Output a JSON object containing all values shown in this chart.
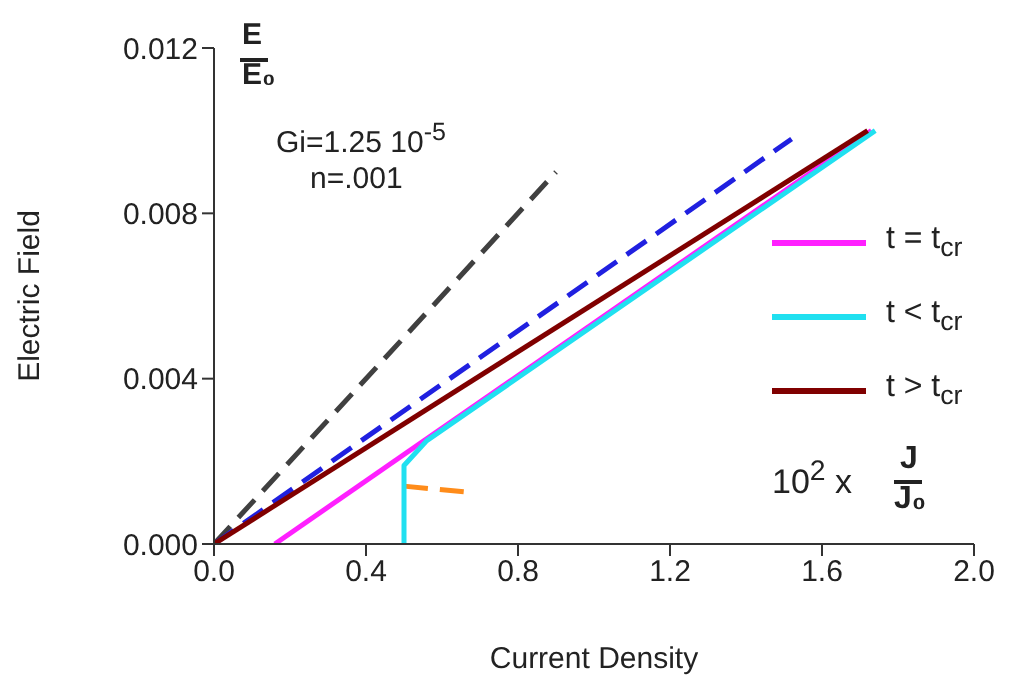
{
  "chart_data": {
    "type": "line",
    "xlabel": "Current Density",
    "ylabel": "Electric Field",
    "annotations": [
      "E",
      "E₀",
      "Gi=1.25 10$^{-5}$",
      "n=.001",
      "10$^{2}$ x",
      "J",
      "J₀"
    ],
    "xlim": [
      0,
      2.0
    ],
    "xticks": [
      {
        "value": 0,
        "label": "0.0"
      },
      0.4,
      0.8,
      1.2,
      {
        "value": 2.0,
        "label": "2.0"
      },
      1.6
    ],
    "ylim": [
      0,
      0.012
    ],
    "yticks": [
      {
        "value": 0,
        "label": "0.000"
      },
      0.004,
      0.008,
      0.012
    ],
    "grid": false,
    "legend": "right",
    "marker": "none",
    "series": [
      {
        "color": "#404040",
        "line_style": "dashed",
        "x": [
          0,
          0.9
        ],
        "values": [
          0,
          0.009
        ]
      },
      {
        "color": "#2020e0",
        "line_style": "dashed",
        "x": [
          0,
          1.52
        ],
        "values": [
          0,
          0.0098
        ]
      },
      {
        "color": "#ff8c1a",
        "line_style": "dashed",
        "x": [
          0.5,
          0.66
        ],
        "values": [
          0.0014,
          0.00126
        ]
      },
      {
        "name": "t = t$_{cr}$",
        "color": "#ff20ff",
        "line_style": "solid",
        "x": [
          0.16,
          1.73
        ],
        "values": [
          0,
          0.01
        ]
      },
      {
        "name": "t < t$_{cr}$",
        "color": "#20e0f0",
        "line_style": "solid",
        "x": [
          0.5,
          0.5,
          0.56,
          1.74
        ],
        "values": [
          0,
          0.0019,
          0.0025,
          0.01
        ]
      },
      {
        "name": "t > t$_{cr}$",
        "color": "#800000",
        "line_style": "solid",
        "x": [
          0,
          1.72
        ],
        "values": [
          0,
          0.01
        ]
      }
    ]
  }
}
